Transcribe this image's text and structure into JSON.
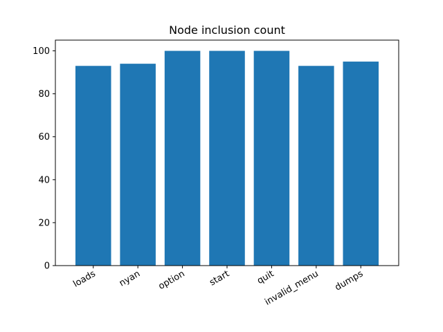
{
  "chart_data": {
    "type": "bar",
    "title": "Node inclusion count",
    "xlabel": "",
    "ylabel": "",
    "categories": [
      "loads",
      "nyan",
      "option",
      "start",
      "quit",
      "invalid_menu",
      "dumps"
    ],
    "values": [
      93,
      94,
      100,
      100,
      100,
      93,
      95
    ],
    "ylim": [
      0,
      105
    ],
    "yticks": [
      0,
      20,
      40,
      60,
      80,
      100
    ],
    "grid": false,
    "bar_color": "#1f77b4"
  }
}
